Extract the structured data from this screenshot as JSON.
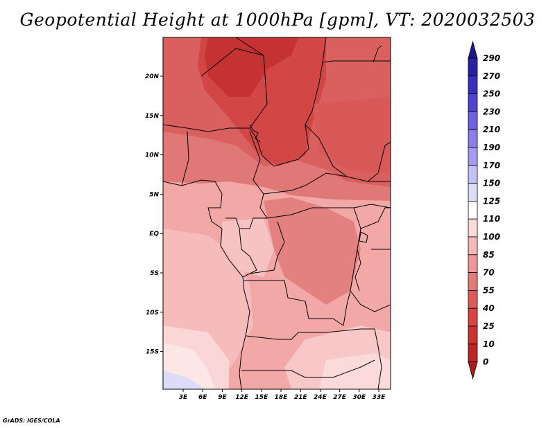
{
  "title": "Geopotential Height at 1000hPa [gpm], VT: 2020032503",
  "credit": "GrADS: IGES/COLA",
  "map": {
    "variable": "Geopotential Height",
    "level": "1000hPa",
    "units": "gpm",
    "valid_time": "2020032503",
    "lon_labels": [
      "3E",
      "6E",
      "9E",
      "12E",
      "15E",
      "18E",
      "21E",
      "24E",
      "27E",
      "30E",
      "33E"
    ],
    "lat_labels": [
      "20N",
      "15N",
      "10N",
      "5N",
      "EQ",
      "5S",
      "10S",
      "15S"
    ]
  },
  "colorbar": {
    "levels": [
      "0",
      "10",
      "25",
      "40",
      "55",
      "70",
      "85",
      "100",
      "110",
      "125",
      "150",
      "170",
      "190",
      "210",
      "230",
      "250",
      "270",
      "290"
    ],
    "colors": [
      "#b01c1c",
      "#bf2424",
      "#cf3030",
      "#db4242",
      "#e05a5a",
      "#e57a7a",
      "#f09898",
      "#f7b8b8",
      "#fbdada",
      "#ffffff",
      "#dcdcf8",
      "#c2c2f6",
      "#a49af2",
      "#8a7eec",
      "#6e62e2",
      "#5244d2",
      "#3a2ebf",
      "#2a20a8",
      "#1e1690"
    ]
  }
}
